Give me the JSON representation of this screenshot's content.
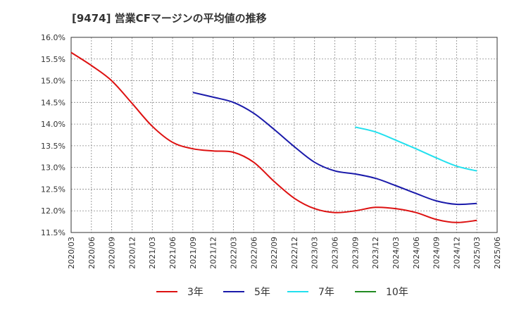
{
  "chart_data": {
    "type": "line",
    "title": "[9474]  営業CFマージンの平均値の推移",
    "xlabel": "",
    "ylabel": "",
    "x_ticks": [
      "2020/03",
      "2020/06",
      "2020/09",
      "2020/12",
      "2021/03",
      "2021/06",
      "2021/09",
      "2021/12",
      "2022/03",
      "2022/06",
      "2022/09",
      "2022/12",
      "2023/03",
      "2023/06",
      "2023/09",
      "2023/12",
      "2024/03",
      "2024/06",
      "2024/09",
      "2024/12",
      "2025/03",
      "2025/06"
    ],
    "y_ticks": [
      "16.0%",
      "15.5%",
      "15.0%",
      "14.5%",
      "14.0%",
      "13.5%",
      "13.0%",
      "12.5%",
      "12.0%",
      "11.5%"
    ],
    "ylim": [
      11.5,
      16.0
    ],
    "grid": true,
    "legend_position": "bottom",
    "series": [
      {
        "name": "3年",
        "color": "#dd1111",
        "x": [
          "2020/03",
          "2020/06",
          "2020/09",
          "2020/12",
          "2021/03",
          "2021/06",
          "2021/09",
          "2021/12",
          "2022/03",
          "2022/06",
          "2022/09",
          "2022/12",
          "2023/03",
          "2023/06",
          "2023/09",
          "2023/12",
          "2024/03",
          "2024/06",
          "2024/09",
          "2024/12",
          "2025/03"
        ],
        "values": [
          15.65,
          15.35,
          15.0,
          14.48,
          13.95,
          13.58,
          13.43,
          13.38,
          13.35,
          13.12,
          12.68,
          12.29,
          12.05,
          11.96,
          12.0,
          12.08,
          12.05,
          11.96,
          11.8,
          11.73,
          11.78
        ]
      },
      {
        "name": "5年",
        "color": "#1a1aaa",
        "x": [
          "2021/09",
          "2021/12",
          "2022/03",
          "2022/06",
          "2022/09",
          "2022/12",
          "2023/03",
          "2023/06",
          "2023/09",
          "2023/12",
          "2024/03",
          "2024/06",
          "2024/09",
          "2024/12",
          "2025/03"
        ],
        "values": [
          14.73,
          14.62,
          14.5,
          14.25,
          13.88,
          13.48,
          13.12,
          12.92,
          12.85,
          12.75,
          12.58,
          12.4,
          12.23,
          12.15,
          12.17
        ]
      },
      {
        "name": "7年",
        "color": "#22e0ee",
        "x": [
          "2023/09",
          "2023/12",
          "2024/03",
          "2024/06",
          "2024/09",
          "2024/12",
          "2025/03"
        ],
        "values": [
          13.93,
          13.82,
          13.63,
          13.43,
          13.22,
          13.03,
          12.92
        ]
      },
      {
        "name": "10年",
        "color": "#228b22",
        "x": [],
        "values": []
      }
    ]
  }
}
